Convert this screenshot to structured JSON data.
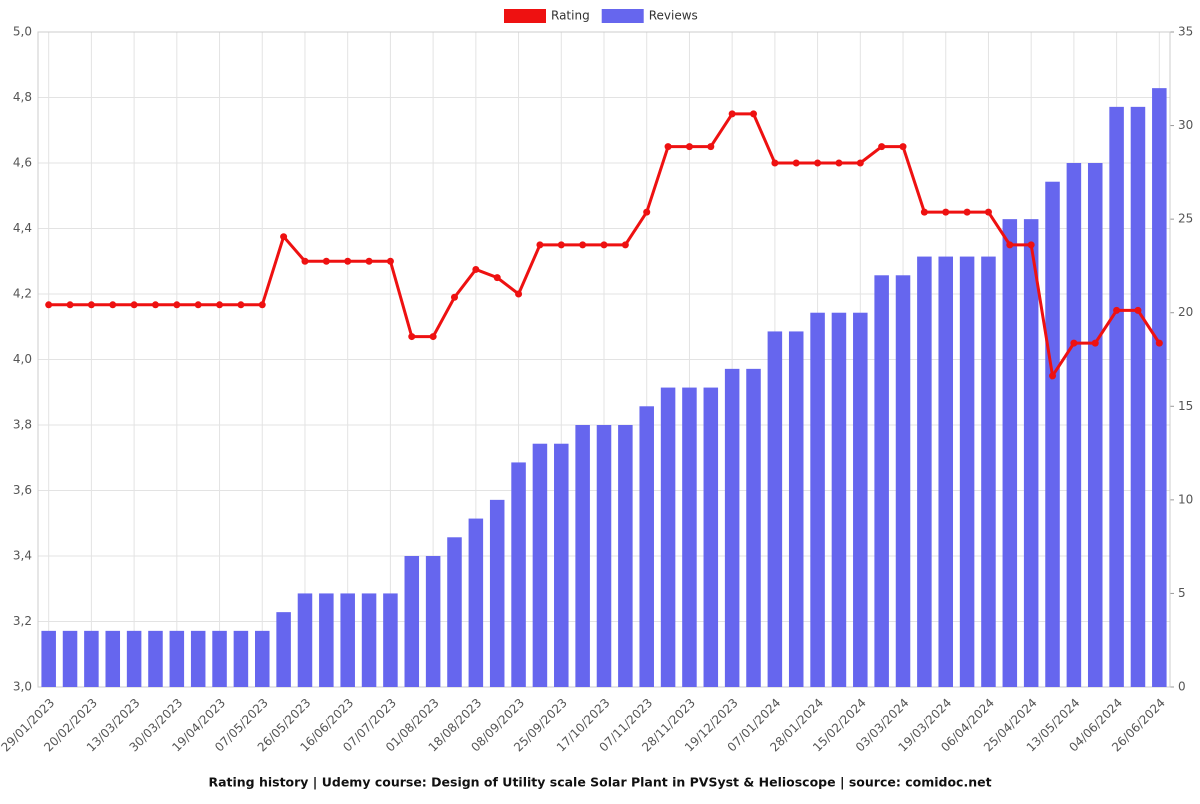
{
  "chart_data": {
    "type": "combo",
    "title": "Rating history | Udemy course: Design of Utility scale Solar Plant in PVSyst & Helioscope | source: comidoc.net",
    "categories": [
      "29/01/2023",
      null,
      "20/02/2023",
      null,
      "13/03/2023",
      null,
      "30/03/2023",
      null,
      "19/04/2023",
      null,
      "07/05/2023",
      null,
      "26/05/2023",
      null,
      "16/06/2023",
      null,
      "07/07/2023",
      null,
      "01/08/2023",
      null,
      "18/08/2023",
      null,
      "08/09/2023",
      null,
      "25/09/2023",
      null,
      "17/10/2023",
      null,
      "07/11/2023",
      null,
      "28/11/2023",
      null,
      "19/12/2023",
      null,
      "07/01/2024",
      null,
      "28/01/2024",
      null,
      "15/02/2024",
      null,
      "03/03/2024",
      null,
      "19/03/2024",
      null,
      "06/04/2024",
      null,
      "25/04/2024",
      null,
      "13/05/2024",
      null,
      "04/06/2024",
      null,
      "26/06/2024"
    ],
    "series": [
      {
        "name": "Rating",
        "type": "line",
        "color": "#ee1111",
        "values": [
          4.167,
          4.167,
          4.167,
          4.167,
          4.167,
          4.167,
          4.167,
          4.167,
          4.167,
          4.167,
          4.167,
          4.375,
          4.3,
          4.3,
          4.3,
          4.3,
          4.3,
          4.07,
          4.07,
          4.19,
          4.275,
          4.25,
          4.2,
          4.35,
          4.35,
          4.35,
          4.35,
          4.35,
          4.45,
          4.65,
          4.65,
          4.65,
          4.75,
          4.75,
          4.6,
          4.6,
          4.6,
          4.6,
          4.6,
          4.65,
          4.65,
          4.45,
          4.45,
          4.45,
          4.45,
          4.35,
          4.35,
          3.95,
          4.05,
          4.05,
          4.15,
          4.15,
          4.05
        ]
      },
      {
        "name": "Reviews",
        "type": "bar",
        "axis": "y2",
        "color": "#6666ee",
        "values": [
          3,
          3,
          3,
          3,
          3,
          3,
          3,
          3,
          3,
          3,
          3,
          4,
          5,
          5,
          5,
          5,
          5,
          7,
          7,
          8,
          9,
          10,
          12,
          13,
          13,
          14,
          14,
          14,
          15,
          16,
          16,
          16,
          17,
          17,
          19,
          19,
          20,
          20,
          20,
          22,
          22,
          23,
          23,
          23,
          23,
          25,
          25,
          27,
          28,
          28,
          31,
          31,
          32
        ]
      }
    ],
    "ylim": [
      3.0,
      5.0
    ],
    "yticks": [
      {
        "value": 3.0,
        "label": "3,0"
      },
      {
        "value": 3.2,
        "label": "3,2"
      },
      {
        "value": 3.4,
        "label": "3,4"
      },
      {
        "value": 3.6,
        "label": "3,6"
      },
      {
        "value": 3.8,
        "label": "3,8"
      },
      {
        "value": 4.0,
        "label": "4,0"
      },
      {
        "value": 4.2,
        "label": "4,2"
      },
      {
        "value": 4.4,
        "label": "4,4"
      },
      {
        "value": 4.6,
        "label": "4,6"
      },
      {
        "value": 4.8,
        "label": "4,8"
      },
      {
        "value": 5.0,
        "label": "5,0"
      }
    ],
    "y2lim": [
      0,
      35
    ],
    "y2ticks": [
      0,
      5,
      10,
      15,
      20,
      25,
      30,
      35
    ],
    "grid": true
  }
}
